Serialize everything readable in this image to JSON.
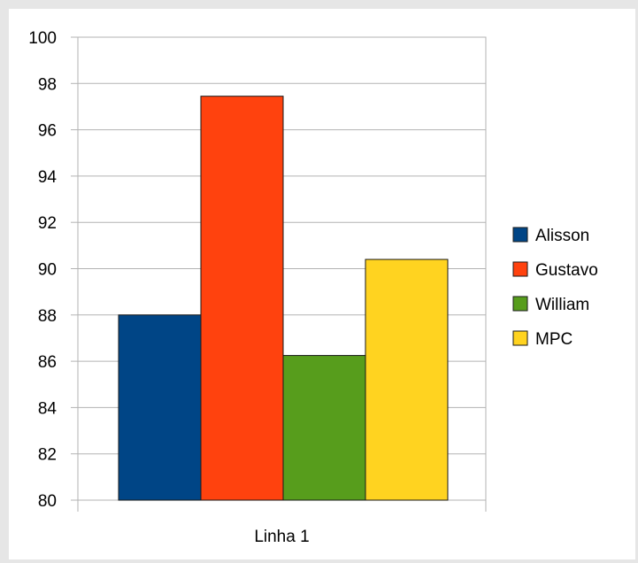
{
  "chart_data": {
    "type": "bar",
    "categories": [
      "Linha 1"
    ],
    "series": [
      {
        "name": "Alisson",
        "values": [
          88.0
        ],
        "color": "#004586"
      },
      {
        "name": "Gustavo",
        "values": [
          97.45
        ],
        "color": "#ff420e"
      },
      {
        "name": "William",
        "values": [
          86.25
        ],
        "color": "#579d1c"
      },
      {
        "name": "MPC",
        "values": [
          90.4
        ],
        "color": "#ffd320"
      }
    ],
    "ylim": [
      80,
      100
    ],
    "yticks": [
      "80",
      "82",
      "84",
      "86",
      "88",
      "90",
      "92",
      "94",
      "96",
      "98",
      "100"
    ],
    "grid": true,
    "legend_position": "right",
    "title": "",
    "xlabel": "",
    "ylabel": ""
  }
}
